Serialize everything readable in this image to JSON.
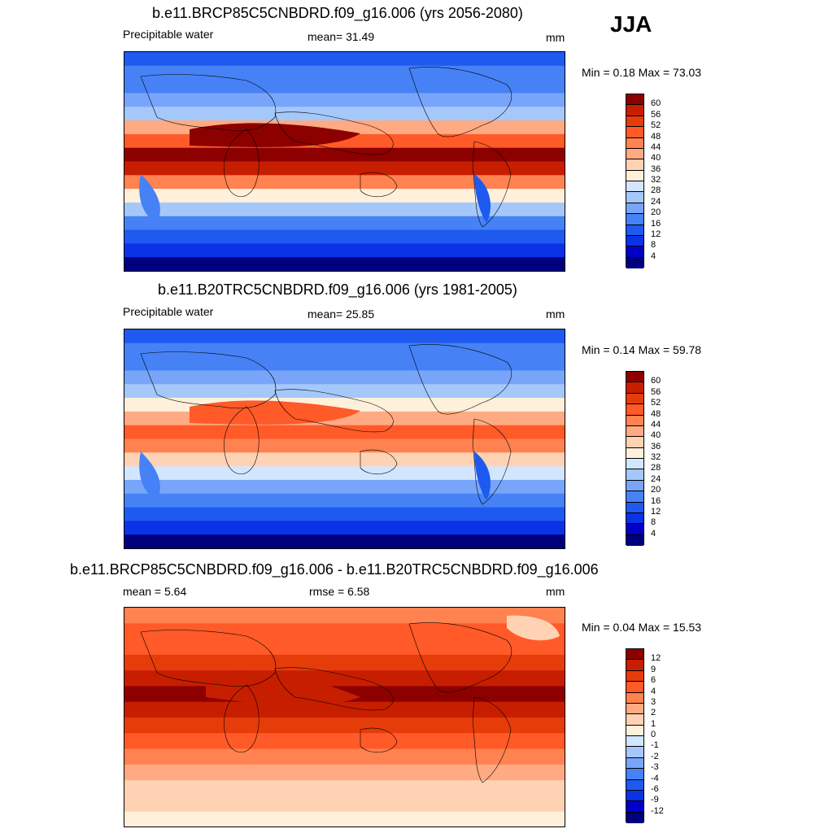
{
  "season": "JJA",
  "colors": {
    "full": [
      "#00007f",
      "#0000c8",
      "#0a32e6",
      "#1e5af0",
      "#4682f5",
      "#78a5fa",
      "#a5c8fa",
      "#d2e6ff",
      "#fff0dc",
      "#ffd2b4",
      "#ffaa82",
      "#ff8250",
      "#ff5a28",
      "#e63c0a",
      "#c81e00",
      "#8c0000"
    ],
    "diff": [
      "#00007f",
      "#0000c8",
      "#0a32e6",
      "#1e5af0",
      "#4682f5",
      "#78a5fa",
      "#a5c8fa",
      "#d2e6ff",
      "#fff0dc",
      "#ffd2b4",
      "#ffaa82",
      "#ff8250",
      "#ff5a28",
      "#e63c0a",
      "#c81e00",
      "#8c0000"
    ]
  },
  "panels": [
    {
      "title": "b.e11.BRCP85C5CNBDRD.f09_g16.006 (yrs 2056-2080)",
      "left_label": "Precipitable water",
      "mid_label": "mean=  31.49",
      "unit": "mm",
      "minmax": "Min =   0.18 Max =  73.03",
      "levels": [
        "60",
        "56",
        "52",
        "48",
        "44",
        "40",
        "36",
        "32",
        "28",
        "24",
        "20",
        "16",
        "12",
        "8",
        "4"
      ],
      "variant": "future"
    },
    {
      "title": "b.e11.B20TRC5CNBDRD.f09_g16.006 (yrs 1981-2005)",
      "left_label": "Precipitable water",
      "mid_label": "mean=  25.85",
      "unit": "mm",
      "minmax": "Min =   0.14 Max =  59.78",
      "levels": [
        "60",
        "56",
        "52",
        "48",
        "44",
        "40",
        "36",
        "32",
        "28",
        "24",
        "20",
        "16",
        "12",
        "8",
        "4"
      ],
      "variant": "present"
    },
    {
      "title": "b.e11.BRCP85C5CNBDRD.f09_g16.006 - b.e11.B20TRC5CNBDRD.f09_g16.006",
      "left_label": "mean =   5.64",
      "mid_label": "rmse =   6.58",
      "unit": "mm",
      "minmax": "Min =   0.04 Max =  15.53",
      "levels": [
        "12",
        "9",
        "6",
        "4",
        "3",
        "2",
        "1",
        "0",
        "-1",
        "-2",
        "-3",
        "-4",
        "-6",
        "-9",
        "-12"
      ],
      "variant": "diff"
    }
  ]
}
